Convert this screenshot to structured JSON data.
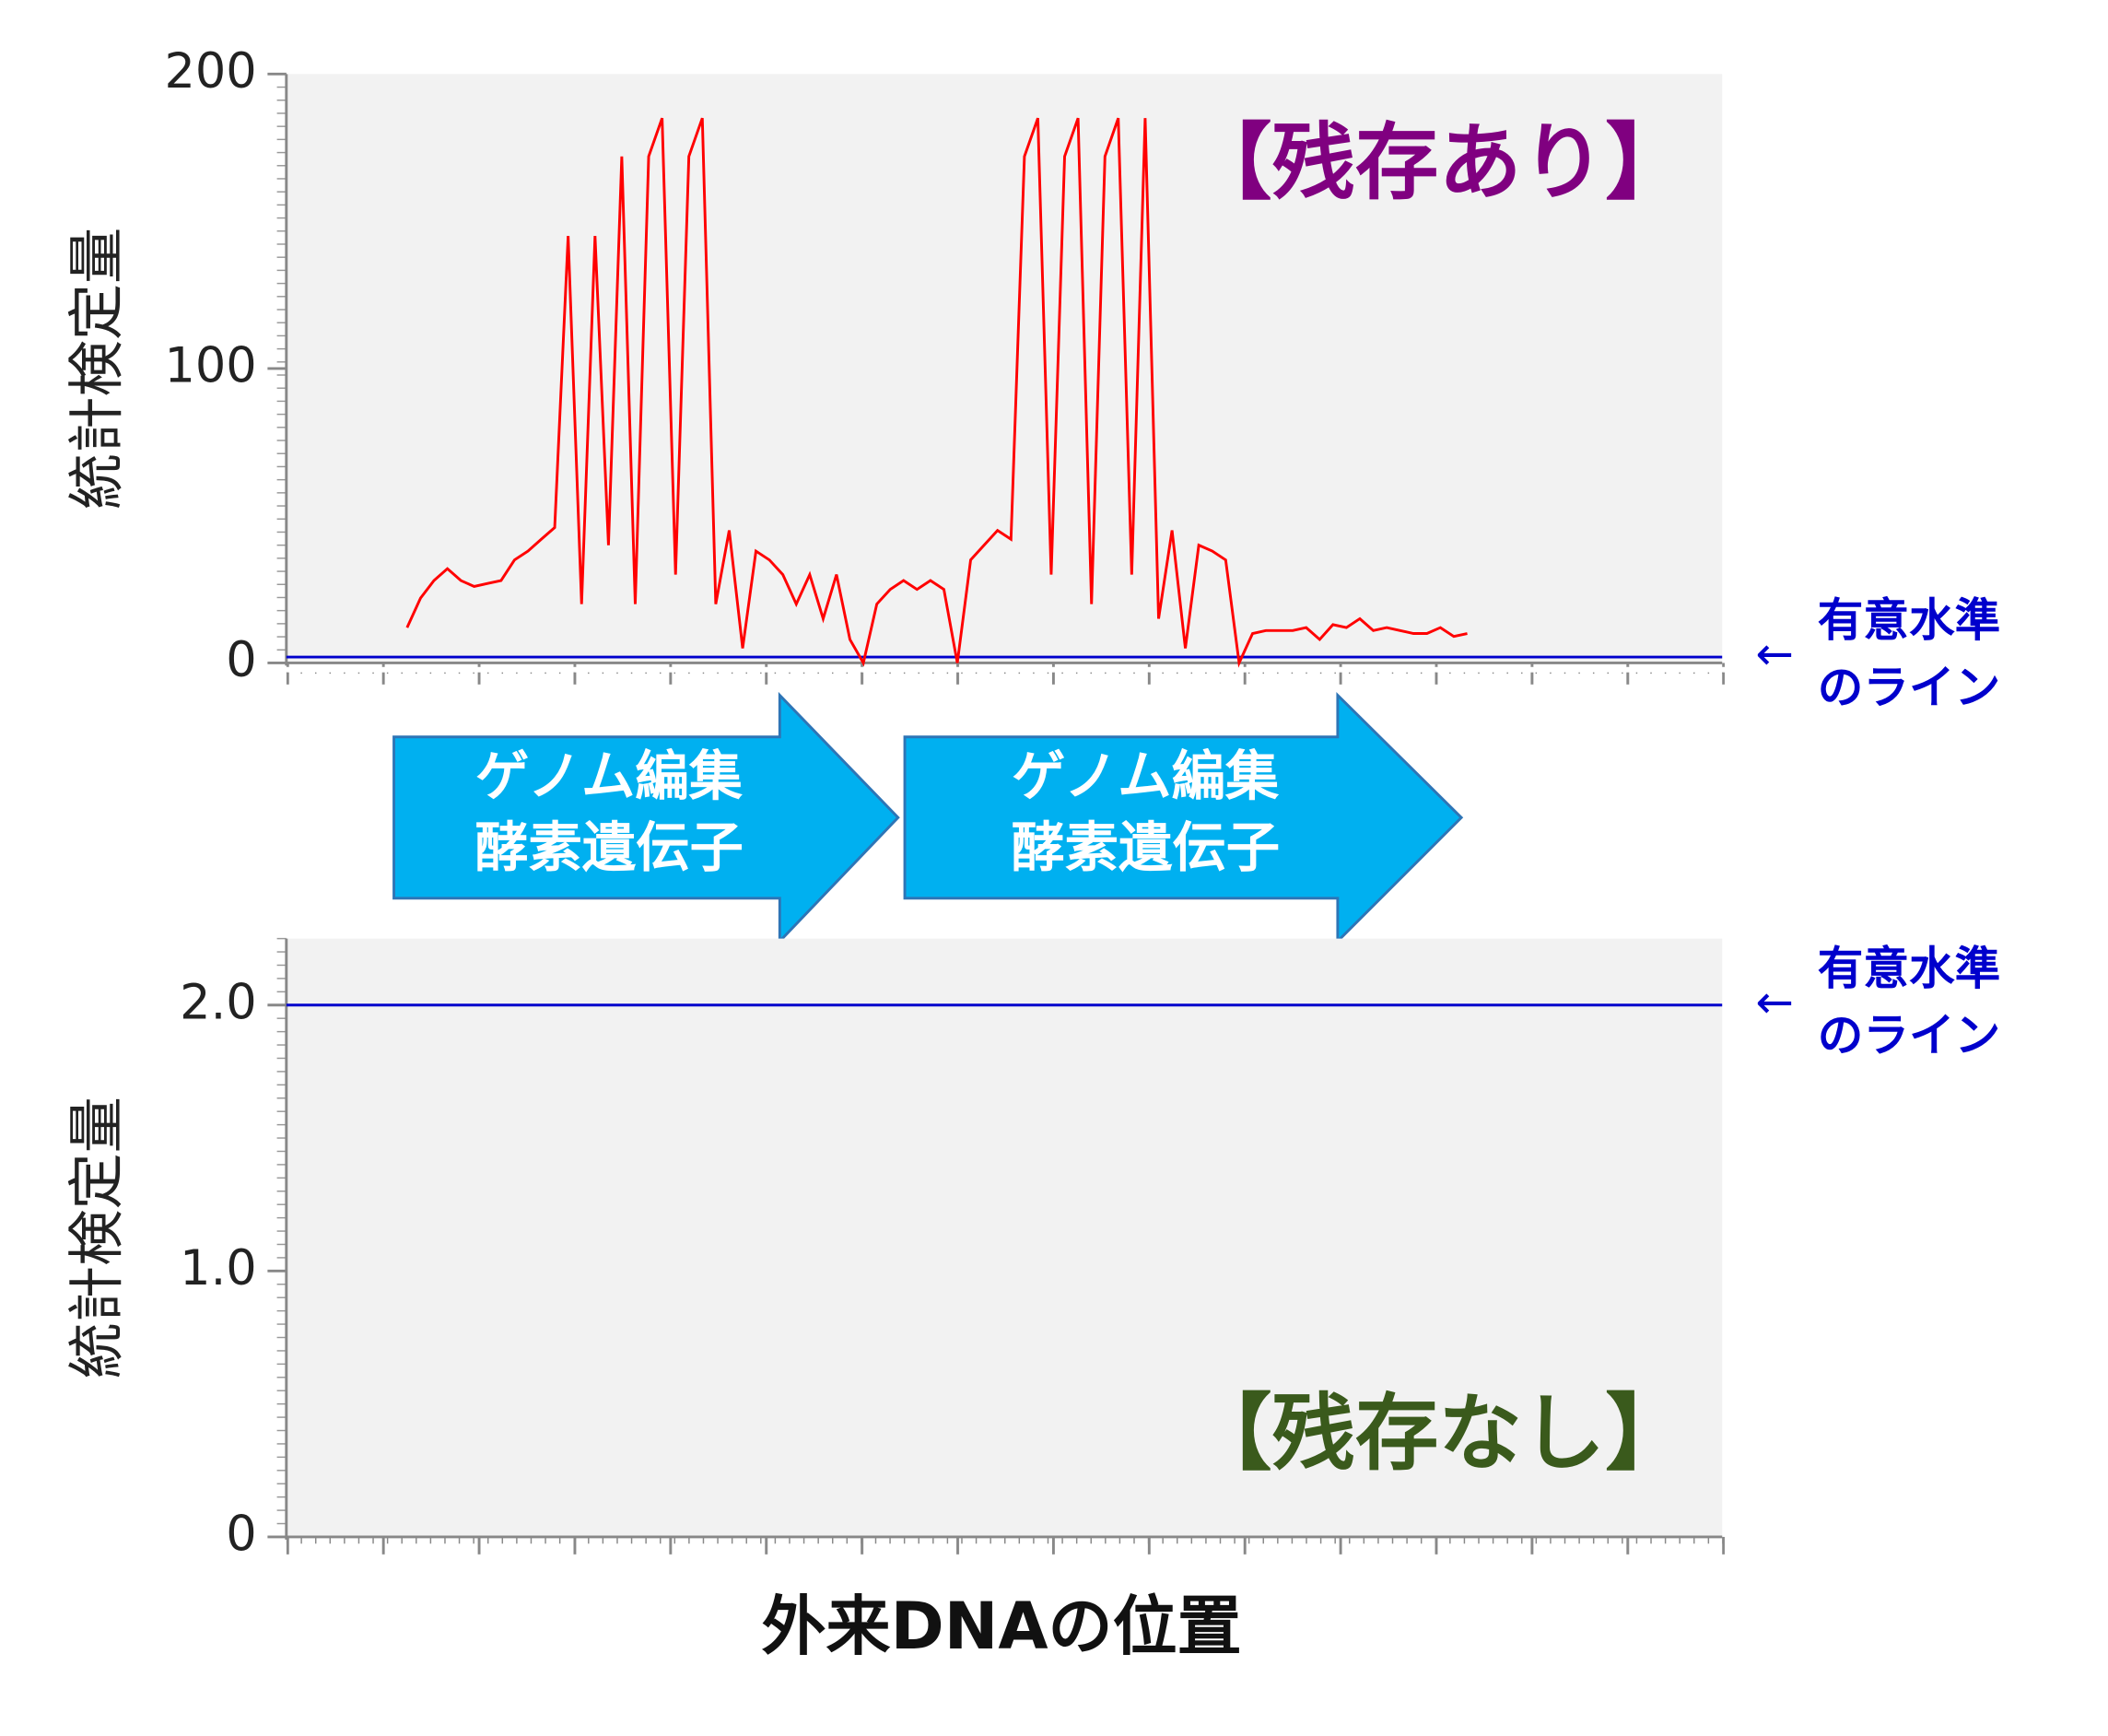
{
  "chart_data": [
    {
      "type": "line",
      "ylabel": "統計検定量",
      "label": "【残存あり】",
      "label_color": "#800080",
      "ylim": [
        0,
        200
      ],
      "yticks": [
        0,
        100,
        200
      ],
      "threshold": {
        "value": 2,
        "color": "#0000cc",
        "arrow": "←",
        "label": [
          "有意水準",
          "のライン"
        ]
      },
      "series": [
        {
          "color": "#ff0000",
          "values": [
            null,
            null,
            null,
            null,
            null,
            null,
            null,
            null,
            null,
            12,
            22,
            28,
            32,
            28,
            26,
            27,
            28,
            35,
            38,
            42,
            46,
            145,
            20,
            145,
            40,
            172,
            20,
            172,
            185,
            30,
            172,
            185,
            20,
            45,
            5,
            38,
            35,
            30,
            20,
            30,
            15,
            30,
            8,
            0,
            20,
            25,
            28,
            25,
            28,
            25,
            0,
            35,
            40,
            45,
            42,
            172,
            185,
            30,
            172,
            185,
            20,
            172,
            185,
            30,
            185,
            15,
            45,
            5,
            40,
            38,
            35,
            0,
            10,
            11,
            11,
            11,
            12,
            8,
            13,
            12,
            15,
            11,
            12,
            11,
            10,
            10,
            12,
            9,
            10,
            null,
            null,
            null,
            null,
            null,
            null,
            null,
            null,
            null,
            null,
            null,
            null,
            null,
            null,
            null,
            null,
            null,
            null,
            null
          ]
        }
      ]
    },
    {
      "type": "line",
      "ylabel": "統計検定量",
      "label": "【残存なし】",
      "label_color": "#3a5a1c",
      "ylim": [
        0,
        2.25
      ],
      "yticks": [
        0,
        {
          "value": 1,
          "label": "1.0"
        },
        {
          "value": 2,
          "label": "2.0"
        }
      ],
      "threshold": {
        "value": 2,
        "color": "#0000cc",
        "arrow": "←",
        "label": [
          "有意水準",
          "のライン"
        ]
      },
      "series": [],
      "xlabel": "外来DNAの位置"
    }
  ],
  "annotations": [
    {
      "lines": [
        "ゲノム編集",
        "酵素遺伝子"
      ]
    },
    {
      "lines": [
        "ゲノム編集",
        "酵素遺伝子"
      ]
    }
  ]
}
